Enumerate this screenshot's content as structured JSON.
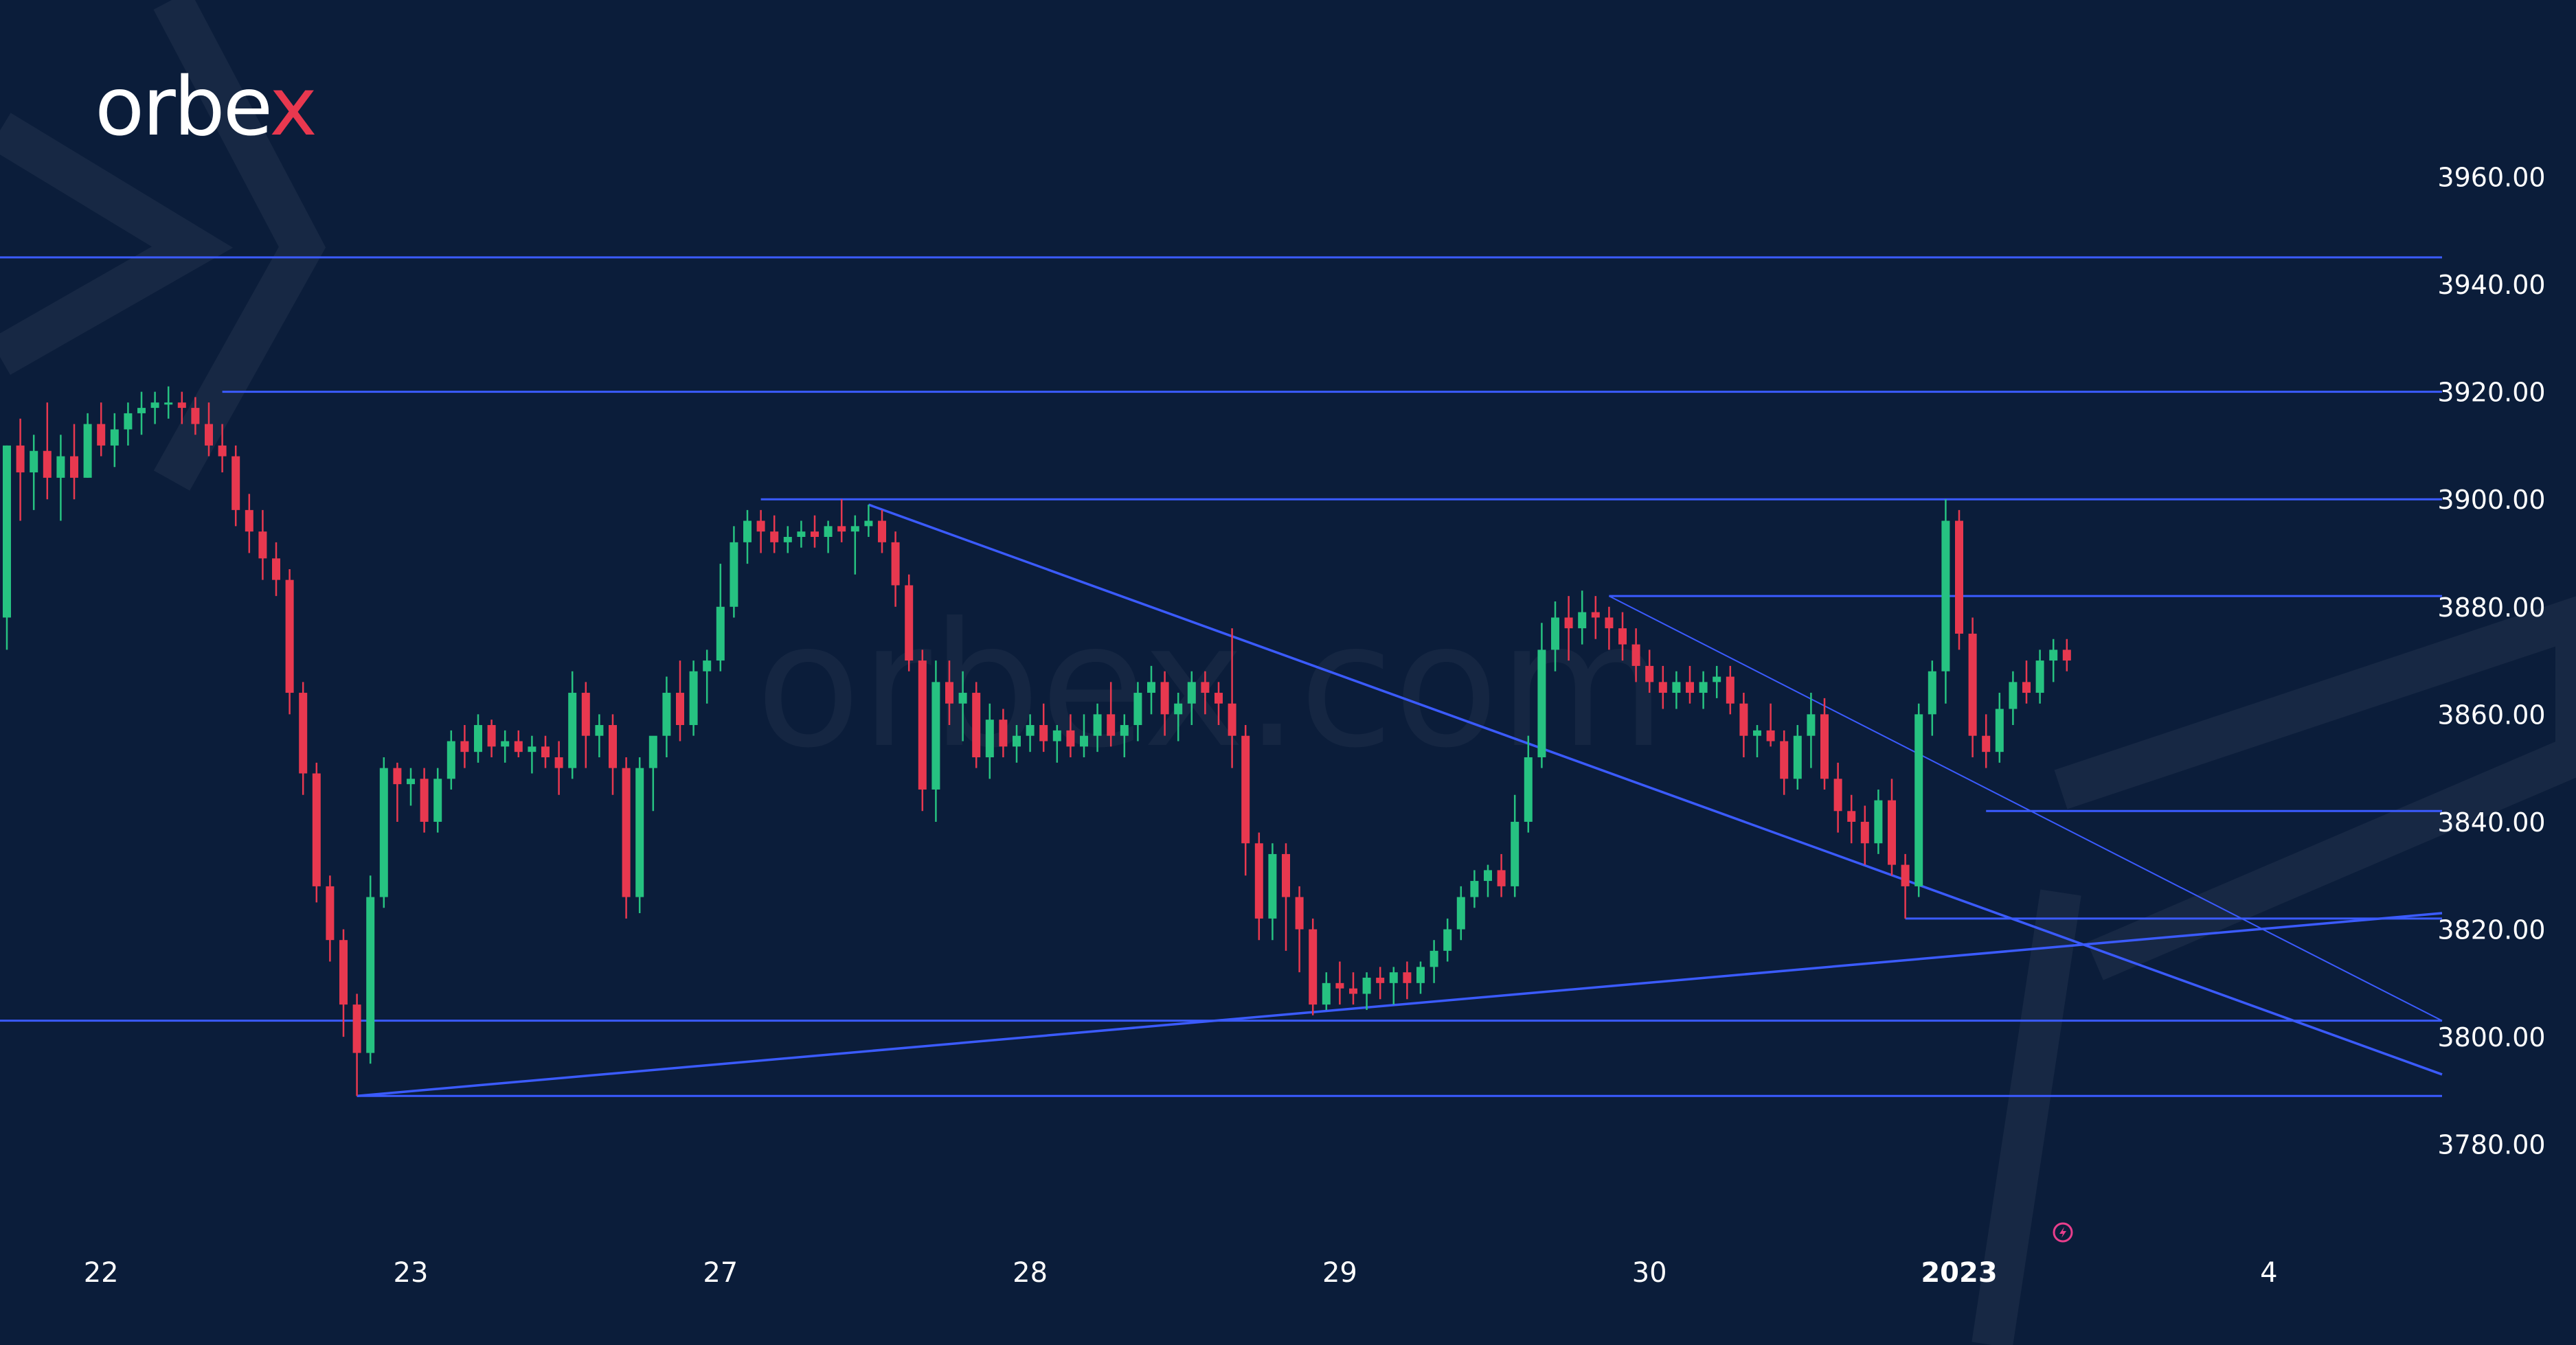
{
  "brand": {
    "logo_text": "orbe",
    "logo_accent": "x",
    "watermark": "orbex.com"
  },
  "colors": {
    "background": "#0b1d3a",
    "bull": "#26c281",
    "bear": "#e8384f",
    "lines": "#3b5bff",
    "labels": "#ffffff"
  },
  "chart_data": {
    "type": "candlestick",
    "title": "",
    "ylim": [
      3770,
      3975
    ],
    "y_ticks": [
      "3960.00",
      "3940.00",
      "3920.00",
      "3900.00",
      "3880.00",
      "3860.00",
      "3840.00",
      "3820.00",
      "3800.00",
      "3780.00"
    ],
    "x_ticks": [
      {
        "label": "22",
        "index": 7
      },
      {
        "label": "23",
        "index": 30
      },
      {
        "label": "27",
        "index": 53
      },
      {
        "label": "28",
        "index": 76
      },
      {
        "label": "29",
        "index": 99
      },
      {
        "label": "30",
        "index": 122
      },
      {
        "label": "2023",
        "index": 145,
        "bold": true
      },
      {
        "label": "4",
        "index": 168
      }
    ],
    "horizontal_levels": [
      {
        "price": 3945,
        "from": -1,
        "to": 181
      },
      {
        "price": 3920,
        "from": 16,
        "to": 181
      },
      {
        "price": 3900,
        "from": 56,
        "to": 181
      },
      {
        "price": 3882,
        "from": 119,
        "to": 181
      },
      {
        "price": 3842,
        "from": 147,
        "to": 181
      },
      {
        "price": 3822,
        "from": 141,
        "to": 181
      },
      {
        "price": 3803,
        "from": -1,
        "to": 181
      },
      {
        "price": 3789,
        "from": 26,
        "to": 181
      }
    ],
    "trend_lines": [
      {
        "from": [
          64,
          3899
        ],
        "to": [
          181,
          3793
        ]
      },
      {
        "from": [
          119,
          3882
        ],
        "to": [
          181,
          3803
        ]
      },
      {
        "from": [
          26,
          3789
        ],
        "to": [
          181,
          3823
        ]
      }
    ],
    "candles": [
      [
        3878,
        3910,
        3872,
        3910
      ],
      [
        3910,
        3915,
        3896,
        3905
      ],
      [
        3905,
        3912,
        3898,
        3909
      ],
      [
        3909,
        3918,
        3900,
        3904
      ],
      [
        3904,
        3912,
        3896,
        3908
      ],
      [
        3908,
        3914,
        3900,
        3904
      ],
      [
        3904,
        3916,
        3904,
        3914
      ],
      [
        3914,
        3918,
        3908,
        3910
      ],
      [
        3910,
        3916,
        3906,
        3913
      ],
      [
        3913,
        3918,
        3910,
        3916
      ],
      [
        3916,
        3920,
        3912,
        3917
      ],
      [
        3917,
        3920,
        3914,
        3918
      ],
      [
        3918,
        3921,
        3915,
        3918
      ],
      [
        3918,
        3920,
        3914,
        3917
      ],
      [
        3917,
        3919,
        3912,
        3914
      ],
      [
        3914,
        3918,
        3908,
        3910
      ],
      [
        3910,
        3914,
        3905,
        3908
      ],
      [
        3908,
        3910,
        3895,
        3898
      ],
      [
        3898,
        3901,
        3890,
        3894
      ],
      [
        3894,
        3898,
        3885,
        3889
      ],
      [
        3889,
        3892,
        3882,
        3885
      ],
      [
        3885,
        3887,
        3860,
        3864
      ],
      [
        3864,
        3866,
        3845,
        3849
      ],
      [
        3849,
        3851,
        3825,
        3828
      ],
      [
        3828,
        3830,
        3814,
        3818
      ],
      [
        3818,
        3820,
        3800,
        3806
      ],
      [
        3806,
        3808,
        3789,
        3797
      ],
      [
        3797,
        3830,
        3795,
        3826
      ],
      [
        3826,
        3852,
        3824,
        3850
      ],
      [
        3850,
        3851,
        3840,
        3847
      ],
      [
        3847,
        3850,
        3843,
        3848
      ],
      [
        3848,
        3850,
        3838,
        3840
      ],
      [
        3840,
        3850,
        3838,
        3848
      ],
      [
        3848,
        3857,
        3846,
        3855
      ],
      [
        3855,
        3858,
        3850,
        3853
      ],
      [
        3853,
        3860,
        3851,
        3858
      ],
      [
        3858,
        3859,
        3852,
        3854
      ],
      [
        3854,
        3857,
        3851,
        3855
      ],
      [
        3855,
        3857,
        3852,
        3853
      ],
      [
        3853,
        3856,
        3849,
        3854
      ],
      [
        3854,
        3856,
        3850,
        3852
      ],
      [
        3852,
        3855,
        3845,
        3850
      ],
      [
        3850,
        3868,
        3848,
        3864
      ],
      [
        3864,
        3866,
        3850,
        3856
      ],
      [
        3856,
        3860,
        3852,
        3858
      ],
      [
        3858,
        3860,
        3845,
        3850
      ],
      [
        3850,
        3852,
        3822,
        3826
      ],
      [
        3826,
        3852,
        3823,
        3850
      ],
      [
        3850,
        3854,
        3842,
        3856
      ],
      [
        3856,
        3867,
        3852,
        3864
      ],
      [
        3864,
        3870,
        3855,
        3858
      ],
      [
        3858,
        3870,
        3856,
        3868
      ],
      [
        3868,
        3872,
        3862,
        3870
      ],
      [
        3870,
        3888,
        3868,
        3880
      ],
      [
        3880,
        3895,
        3878,
        3892
      ],
      [
        3892,
        3898,
        3888,
        3896
      ],
      [
        3896,
        3898,
        3890,
        3894
      ],
      [
        3894,
        3897,
        3890,
        3892
      ],
      [
        3892,
        3895,
        3890,
        3893
      ],
      [
        3893,
        3896,
        3891,
        3894
      ],
      [
        3894,
        3897,
        3891,
        3893
      ],
      [
        3893,
        3896,
        3890,
        3895
      ],
      [
        3895,
        3900,
        3892,
        3894
      ],
      [
        3894,
        3897,
        3886,
        3895
      ],
      [
        3895,
        3899,
        3893,
        3896
      ],
      [
        3896,
        3898,
        3890,
        3892
      ],
      [
        3892,
        3894,
        3880,
        3884
      ],
      [
        3884,
        3886,
        3868,
        3870
      ],
      [
        3870,
        3872,
        3842,
        3846
      ],
      [
        3846,
        3870,
        3840,
        3866
      ],
      [
        3866,
        3870,
        3858,
        3862
      ],
      [
        3862,
        3868,
        3855,
        3864
      ],
      [
        3864,
        3866,
        3850,
        3852
      ],
      [
        3852,
        3862,
        3848,
        3859
      ],
      [
        3859,
        3861,
        3852,
        3854
      ],
      [
        3854,
        3858,
        3851,
        3856
      ],
      [
        3856,
        3860,
        3853,
        3858
      ],
      [
        3858,
        3862,
        3853,
        3855
      ],
      [
        3855,
        3858,
        3851,
        3857
      ],
      [
        3857,
        3860,
        3852,
        3854
      ],
      [
        3854,
        3860,
        3852,
        3856
      ],
      [
        3856,
        3862,
        3853,
        3860
      ],
      [
        3860,
        3866,
        3854,
        3856
      ],
      [
        3856,
        3860,
        3852,
        3858
      ],
      [
        3858,
        3866,
        3855,
        3864
      ],
      [
        3864,
        3869,
        3860,
        3866
      ],
      [
        3866,
        3868,
        3856,
        3860
      ],
      [
        3860,
        3864,
        3855,
        3862
      ],
      [
        3862,
        3868,
        3858,
        3866
      ],
      [
        3866,
        3868,
        3860,
        3864
      ],
      [
        3864,
        3866,
        3858,
        3862
      ],
      [
        3862,
        3876,
        3850,
        3856
      ],
      [
        3856,
        3858,
        3830,
        3836
      ],
      [
        3836,
        3838,
        3818,
        3822
      ],
      [
        3822,
        3836,
        3818,
        3834
      ],
      [
        3834,
        3836,
        3816,
        3826
      ],
      [
        3826,
        3828,
        3812,
        3820
      ],
      [
        3820,
        3822,
        3804,
        3806
      ],
      [
        3806,
        3812,
        3805,
        3810
      ],
      [
        3810,
        3814,
        3806,
        3809
      ],
      [
        3809,
        3812,
        3806,
        3808
      ],
      [
        3808,
        3812,
        3805,
        3811
      ],
      [
        3811,
        3813,
        3807,
        3810
      ],
      [
        3810,
        3813,
        3806,
        3812
      ],
      [
        3812,
        3814,
        3807,
        3810
      ],
      [
        3810,
        3814,
        3808,
        3813
      ],
      [
        3813,
        3818,
        3810,
        3816
      ],
      [
        3816,
        3822,
        3814,
        3820
      ],
      [
        3820,
        3828,
        3818,
        3826
      ],
      [
        3826,
        3831,
        3824,
        3829
      ],
      [
        3829,
        3832,
        3826,
        3831
      ],
      [
        3831,
        3834,
        3826,
        3828
      ],
      [
        3828,
        3845,
        3826,
        3840
      ],
      [
        3840,
        3856,
        3838,
        3852
      ],
      [
        3852,
        3877,
        3850,
        3872
      ],
      [
        3872,
        3881,
        3868,
        3878
      ],
      [
        3878,
        3882,
        3870,
        3876
      ],
      [
        3876,
        3883,
        3873,
        3879
      ],
      [
        3879,
        3882,
        3874,
        3878
      ],
      [
        3878,
        3880,
        3872,
        3876
      ],
      [
        3876,
        3879,
        3870,
        3873
      ],
      [
        3873,
        3876,
        3866,
        3869
      ],
      [
        3869,
        3872,
        3864,
        3866
      ],
      [
        3866,
        3869,
        3861,
        3864
      ],
      [
        3864,
        3868,
        3861,
        3866
      ],
      [
        3866,
        3869,
        3862,
        3864
      ],
      [
        3864,
        3868,
        3861,
        3866
      ],
      [
        3866,
        3869,
        3863,
        3867
      ],
      [
        3867,
        3869,
        3860,
        3862
      ],
      [
        3862,
        3864,
        3852,
        3856
      ],
      [
        3856,
        3858,
        3852,
        3857
      ],
      [
        3857,
        3862,
        3854,
        3855
      ],
      [
        3855,
        3857,
        3845,
        3848
      ],
      [
        3848,
        3858,
        3846,
        3856
      ],
      [
        3856,
        3864,
        3850,
        3860
      ],
      [
        3860,
        3863,
        3846,
        3848
      ],
      [
        3848,
        3851,
        3838,
        3842
      ],
      [
        3842,
        3845,
        3836,
        3840
      ],
      [
        3840,
        3843,
        3832,
        3836
      ],
      [
        3836,
        3846,
        3834,
        3844
      ],
      [
        3844,
        3848,
        3830,
        3832
      ],
      [
        3832,
        3834,
        3822,
        3828
      ],
      [
        3828,
        3862,
        3826,
        3860
      ],
      [
        3860,
        3870,
        3856,
        3868
      ],
      [
        3868,
        3900,
        3862,
        3896
      ],
      [
        3896,
        3898,
        3872,
        3875
      ],
      [
        3875,
        3878,
        3852,
        3856
      ],
      [
        3856,
        3860,
        3850,
        3853
      ],
      [
        3853,
        3864,
        3851,
        3861
      ],
      [
        3861,
        3868,
        3858,
        3866
      ],
      [
        3866,
        3870,
        3862,
        3864
      ],
      [
        3864,
        3872,
        3862,
        3870
      ],
      [
        3870,
        3874,
        3866,
        3872
      ],
      [
        3872,
        3874,
        3868,
        3870
      ]
    ]
  }
}
